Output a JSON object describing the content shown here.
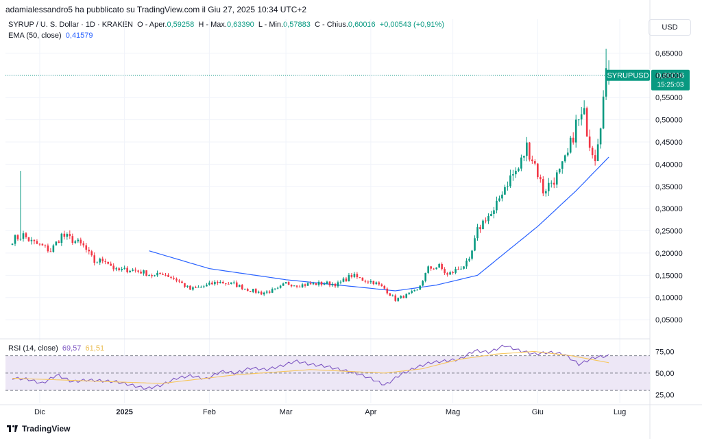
{
  "publisher": "adamialessandro5 ha pubblicato su TradingView.com il Giu 27, 2025 10:34 UTC+2",
  "header": {
    "symbol": "SYRUP / U. S. Dollar · 1D · KRAKEN",
    "open_label": "O - Aper.",
    "open": "0,59258",
    "high_label": "H - Max.",
    "high": "0,63390",
    "low_label": "L - Min.",
    "low": "0,57883",
    "close_label": "C - Chius.",
    "close": "0,60016",
    "change": "+0,00543 (+0,91%)",
    "ema_label": "EMA (50, close)",
    "ema_value": "0,41579",
    "currency": "USD"
  },
  "price_tag": {
    "symbol": "SYRUPUSD",
    "price": "0,60016",
    "countdown": "15:25:03"
  },
  "rsi_legend": {
    "label": "RSI (14, close)",
    "rsi": "69,57",
    "ma": "61,51"
  },
  "brand": "TradingView",
  "colors": {
    "up": "#089981",
    "down": "#f23645",
    "ema": "#2962ff",
    "rsi": "#7e57c2",
    "rsi_ma": "#f7c65b",
    "band": "#ede7f6"
  },
  "chart_data": [
    {
      "type": "candlestick",
      "y_ticks": [
        "0,65000",
        "0,60000",
        "0,55000",
        "0,50000",
        "0,45000",
        "0,40000",
        "0,35000",
        "0,30000",
        "0,25000",
        "0,20000",
        "0,15000",
        "0,10000",
        "0,05000"
      ],
      "y_tick_values": [
        0.65,
        0.6,
        0.55,
        0.5,
        0.45,
        0.4,
        0.35,
        0.3,
        0.25,
        0.2,
        0.15,
        0.1,
        0.05
      ],
      "ylim": [
        0.01,
        0.68
      ],
      "x_ticks": [
        "Dic",
        "2025",
        "Feb",
        "Mar",
        "Apr",
        "Mag",
        "Giu",
        "Lug"
      ],
      "x_tick_dates": [
        "2024-12-01",
        "2025-01-01",
        "2025-02-01",
        "2025-03-01",
        "2025-04-01",
        "2025-05-01",
        "2025-06-01",
        "2025-07-01"
      ],
      "first_date": "2024-11-21",
      "last_date": "2025-06-27",
      "key_closes": [
        [
          "2024-11-21",
          0.23
        ],
        [
          "2024-11-25",
          0.24
        ],
        [
          "2024-11-28",
          0.225
        ],
        [
          "2024-12-02",
          0.215
        ],
        [
          "2024-12-05",
          0.205
        ],
        [
          "2024-12-09",
          0.24
        ],
        [
          "2024-12-13",
          0.23
        ],
        [
          "2024-12-17",
          0.215
        ],
        [
          "2024-12-21",
          0.18
        ],
        [
          "2024-12-25",
          0.185
        ],
        [
          "2024-12-29",
          0.16
        ],
        [
          "2025-01-03",
          0.163
        ],
        [
          "2025-01-07",
          0.158
        ],
        [
          "2025-01-12",
          0.148
        ],
        [
          "2025-01-15",
          0.155
        ],
        [
          "2025-01-20",
          0.14
        ],
        [
          "2025-01-25",
          0.118
        ],
        [
          "2025-01-30",
          0.125
        ],
        [
          "2025-02-04",
          0.135
        ],
        [
          "2025-02-10",
          0.13
        ],
        [
          "2025-02-15",
          0.118
        ],
        [
          "2025-02-20",
          0.11
        ],
        [
          "2025-02-26",
          0.118
        ],
        [
          "2025-03-01",
          0.132
        ],
        [
          "2025-03-06",
          0.128
        ],
        [
          "2025-03-10",
          0.13
        ],
        [
          "2025-03-15",
          0.132
        ],
        [
          "2025-03-20",
          0.13
        ],
        [
          "2025-03-25",
          0.15
        ],
        [
          "2025-03-29",
          0.14
        ],
        [
          "2025-04-02",
          0.135
        ],
        [
          "2025-04-06",
          0.12
        ],
        [
          "2025-04-10",
          0.095
        ],
        [
          "2025-04-14",
          0.105
        ],
        [
          "2025-04-18",
          0.115
        ],
        [
          "2025-04-22",
          0.165
        ],
        [
          "2025-04-26",
          0.17
        ],
        [
          "2025-04-29",
          0.15
        ],
        [
          "2025-05-03",
          0.165
        ],
        [
          "2025-05-07",
          0.18
        ],
        [
          "2025-05-10",
          0.25
        ],
        [
          "2025-05-13",
          0.28
        ],
        [
          "2025-05-16",
          0.29
        ],
        [
          "2025-05-19",
          0.34
        ],
        [
          "2025-05-22",
          0.37
        ],
        [
          "2025-05-25",
          0.39
        ],
        [
          "2025-05-28",
          0.44
        ],
        [
          "2025-05-31",
          0.4
        ],
        [
          "2025-06-03",
          0.34
        ],
        [
          "2025-06-06",
          0.36
        ],
        [
          "2025-06-09",
          0.38
        ],
        [
          "2025-06-12",
          0.42
        ],
        [
          "2025-06-15",
          0.49
        ],
        [
          "2025-06-18",
          0.51
        ],
        [
          "2025-06-20",
          0.45
        ],
        [
          "2025-06-22",
          0.42
        ],
        [
          "2025-06-24",
          0.5
        ],
        [
          "2025-06-26",
          0.595
        ],
        [
          "2025-06-27",
          0.6
        ]
      ],
      "ema_start": "2025-01-10",
      "ema_points": [
        [
          "2025-01-10",
          0.205
        ],
        [
          "2025-02-01",
          0.165
        ],
        [
          "2025-03-01",
          0.14
        ],
        [
          "2025-04-10",
          0.115
        ],
        [
          "2025-04-25",
          0.128
        ],
        [
          "2025-05-10",
          0.15
        ],
        [
          "2025-06-01",
          0.26
        ],
        [
          "2025-06-15",
          0.34
        ],
        [
          "2025-06-27",
          0.416
        ]
      ],
      "current_price": 0.60016
    },
    {
      "type": "line",
      "name": "RSI (14, close)",
      "y_ticks": [
        "75,00",
        "50,00",
        "25,00"
      ],
      "y_tick_values": [
        75,
        50,
        25
      ],
      "band": [
        30,
        70
      ],
      "ylim": [
        15,
        88
      ],
      "rsi_points": [
        [
          0,
          44
        ],
        [
          6,
          43
        ],
        [
          12,
          38
        ],
        [
          18,
          48
        ],
        [
          24,
          40
        ],
        [
          30,
          42
        ],
        [
          36,
          41
        ],
        [
          42,
          40
        ],
        [
          48,
          36
        ],
        [
          54,
          32
        ],
        [
          60,
          36
        ],
        [
          66,
          44
        ],
        [
          72,
          47
        ],
        [
          78,
          43
        ],
        [
          84,
          52
        ],
        [
          90,
          50
        ],
        [
          96,
          56
        ],
        [
          102,
          54
        ],
        [
          108,
          58
        ],
        [
          114,
          64
        ],
        [
          120,
          60
        ],
        [
          126,
          58
        ],
        [
          132,
          54
        ],
        [
          138,
          50
        ],
        [
          144,
          44
        ],
        [
          150,
          36
        ],
        [
          156,
          48
        ],
        [
          162,
          56
        ],
        [
          168,
          62
        ],
        [
          174,
          64
        ],
        [
          180,
          66
        ],
        [
          186,
          76
        ],
        [
          192,
          74
        ],
        [
          198,
          82
        ],
        [
          204,
          76
        ],
        [
          210,
          72
        ],
        [
          216,
          74
        ],
        [
          222,
          72
        ],
        [
          228,
          60
        ],
        [
          234,
          68
        ],
        [
          240,
          70
        ]
      ],
      "ma_points": [
        [
          0,
          44
        ],
        [
          30,
          41
        ],
        [
          60,
          38
        ],
        [
          90,
          48
        ],
        [
          120,
          54
        ],
        [
          150,
          50
        ],
        [
          165,
          55
        ],
        [
          180,
          66
        ],
        [
          195,
          72
        ],
        [
          210,
          75
        ],
        [
          225,
          70
        ],
        [
          240,
          62
        ]
      ]
    }
  ]
}
